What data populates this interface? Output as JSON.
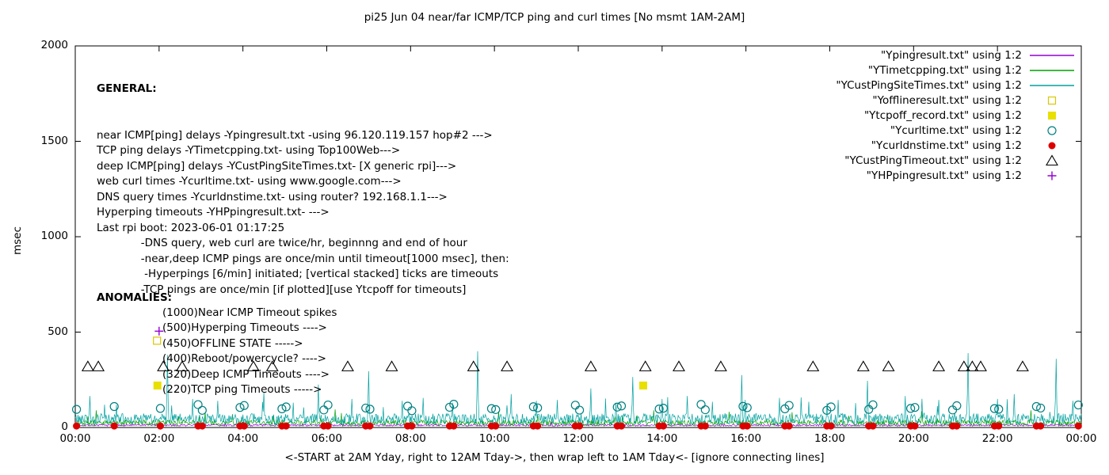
{
  "title": "pi25 Jun 04  near/far ICMP/TCP ping and curl times [No msmt 1AM-2AM]",
  "axes": {
    "ylabel": "msec",
    "xlabel": "<-START at 2AM Yday, right to 12AM Tday->, then wrap left to 1AM Tday<- [ignore connecting lines]",
    "x_ticks": [
      "00:00",
      "02:00",
      "04:00",
      "06:00",
      "08:00",
      "10:00",
      "12:00",
      "14:00",
      "16:00",
      "18:00",
      "20:00",
      "22:00",
      "00:00"
    ],
    "y_ticks": [
      "0",
      "500",
      "1000",
      "1500",
      "2000"
    ]
  },
  "legend": {
    "items": [
      {
        "label": "\"Ypingresult.txt\" using 1:2",
        "marker": "line",
        "color": "#9400d3"
      },
      {
        "label": "\"YTimetcpping.txt\" using 1:2",
        "marker": "line",
        "color": "#00a000"
      },
      {
        "label": "\"YCustPingSiteTimes.txt\" using 1:2",
        "marker": "line",
        "color": "#00a0a0"
      },
      {
        "label": "\"Yofflineresult.txt\" using 1:2",
        "marker": "square-open",
        "color": "#d8c800"
      },
      {
        "label": "\"Ytcpoff_record.txt\" using 1:2",
        "marker": "square-filled",
        "color": "#e8e000"
      },
      {
        "label": "\"Ycurltime.txt\" using 1:2",
        "marker": "circle-open",
        "color": "#008080"
      },
      {
        "label": "\"Ycurldnstime.txt\" using 1:2",
        "marker": "circle-filled",
        "color": "#dd0000"
      },
      {
        "label": "\"YCustPingTimeout.txt\" using 1:2",
        "marker": "triangle-open",
        "color": "#000000"
      },
      {
        "label": "\"YHPpingresult.txt\" using 1:2",
        "marker": "plus",
        "color": "#9400d3"
      }
    ]
  },
  "annotations": {
    "general": {
      "title": "GENERAL:",
      "lines": [
        "near ICMP[ping] delays -Ypingresult.txt -using 96.120.119.157 hop#2 --->",
        "TCP ping delays -YTimetcpping.txt- using Top100Web--->",
        "deep ICMP[ping] delays -YCustPingSiteTimes.txt- [X generic rpi]--->",
        "web curl times -Ycurltime.txt- using www.google.com--->",
        "DNS query times -Ycurldnstime.txt- using router? 192.168.1.1--->",
        "Hyperping timeouts -YHPpingresult.txt- --->",
        "Last rpi boot: 2023-06-01 01:17:25",
        "             -DNS query, web curl are twice/hr, beginnng and end of hour",
        "             -near,deep ICMP pings are once/min until timeout[1000 msec], then:",
        "              -Hyperpings [6/min] initiated; [vertical stacked] ticks are timeouts",
        "             -TCP pings are once/min [if plotted][use Ytcpoff for timeouts]"
      ]
    },
    "anomalies": {
      "title": "ANOMALIES:",
      "lines": [
        "(1000)Near ICMP Timeout spikes",
        "(500)Hyperping Timeouts ---->",
        "(450)OFFLINE STATE ----->",
        "(400)Reboot/powercycle? ---->",
        "(320)Deep ICMP Timeouts ---->",
        "(220)TCP ping Timeouts ----->"
      ]
    }
  },
  "chart_data": {
    "type": "line",
    "title": "pi25 Jun 04  near/far ICMP/TCP ping and curl times [No msmt 1AM-2AM]",
    "xlabel": "<-START at 2AM Yday, right to 12AM Tday->, then wrap left to 1AM Tday<- [ignore connecting lines]",
    "ylabel": "msec",
    "xlim": [
      0,
      24
    ],
    "ylim": [
      0,
      2000
    ],
    "x_tick_hours": [
      0,
      2,
      4,
      6,
      8,
      10,
      12,
      14,
      16,
      18,
      20,
      22,
      24
    ],
    "y_tick_values": [
      0,
      500,
      1000,
      1500,
      2000
    ],
    "grid": false,
    "legend_position": "top-right",
    "lines": [
      {
        "name": "Ypingresult.txt",
        "color": "#9400d3",
        "baseline": 12,
        "noise": 5,
        "spike_prob": 0.005,
        "spike_amp": 15,
        "seed": 7,
        "spikes": []
      },
      {
        "name": "YTimetcpping.txt",
        "color": "#00a000",
        "baseline": 25,
        "noise": 14,
        "spike_prob": 0.02,
        "spike_amp": 50,
        "seed": 13,
        "spikes": [
          [
            0.5,
            90
          ],
          [
            3.1,
            80
          ],
          [
            6.2,
            95
          ],
          [
            10.1,
            85
          ],
          [
            13.8,
            90
          ],
          [
            17.1,
            80
          ],
          [
            20.2,
            85
          ],
          [
            22.8,
            90
          ]
        ]
      },
      {
        "name": "YCustPingSiteTimes.txt",
        "color": "#00a0a0",
        "baseline": 45,
        "noise": 28,
        "spike_prob": 0.03,
        "spike_amp": 110,
        "seed": 42,
        "spikes": [
          [
            0.35,
            165
          ],
          [
            0.7,
            120
          ],
          [
            2.2,
            380
          ],
          [
            2.8,
            150
          ],
          [
            3.4,
            140
          ],
          [
            4.5,
            185
          ],
          [
            5.2,
            130
          ],
          [
            5.8,
            225
          ],
          [
            6.6,
            150
          ],
          [
            7.0,
            295
          ],
          [
            7.8,
            140
          ],
          [
            8.3,
            155
          ],
          [
            9.0,
            130
          ],
          [
            9.6,
            400
          ],
          [
            10.4,
            175
          ],
          [
            11.0,
            140
          ],
          [
            11.5,
            145
          ],
          [
            12.3,
            205
          ],
          [
            12.9,
            130
          ],
          [
            13.3,
            265
          ],
          [
            14.0,
            150
          ],
          [
            14.6,
            165
          ],
          [
            15.2,
            135
          ],
          [
            15.9,
            275
          ],
          [
            16.8,
            155
          ],
          [
            17.5,
            135
          ],
          [
            18.2,
            145
          ],
          [
            18.9,
            245
          ],
          [
            19.8,
            165
          ],
          [
            20.6,
            145
          ],
          [
            21.3,
            390
          ],
          [
            22.0,
            150
          ],
          [
            22.4,
            175
          ],
          [
            23.4,
            360
          ],
          [
            23.8,
            140
          ]
        ]
      }
    ],
    "points": [
      {
        "name": "Yofflineresult.txt",
        "marker": "square-open",
        "color": "#d8c800",
        "x": [
          1.95
        ],
        "y": [
          455
        ]
      },
      {
        "name": "Ytcpoff_record.txt",
        "marker": "square-filled",
        "color": "#e8e000",
        "x": [
          1.96,
          13.55
        ],
        "y_const": 220
      },
      {
        "name": "Ycurltime.txt",
        "marker": "circle-open",
        "color": "#008080",
        "x": [
          0.03,
          0.93,
          2.03,
          2.93,
          3.03,
          3.93,
          4.03,
          4.93,
          5.03,
          5.93,
          6.03,
          6.93,
          7.03,
          7.93,
          8.03,
          8.93,
          9.03,
          9.93,
          10.03,
          10.93,
          11.03,
          11.93,
          12.03,
          12.93,
          13.03,
          13.93,
          14.03,
          14.93,
          15.03,
          15.93,
          16.03,
          16.93,
          17.03,
          17.93,
          18.03,
          18.93,
          19.03,
          19.93,
          20.03,
          20.93,
          21.03,
          21.93,
          22.03,
          22.93,
          23.03,
          23.93
        ],
        "y": [
          95,
          110,
          100,
          120,
          90,
          105,
          115,
          98,
          108,
          92,
          118,
          102,
          96,
          112,
          88,
          106,
          122,
          99,
          94,
          109,
          103,
          117,
          91,
          107,
          113,
          97,
          101,
          121,
          93,
          111,
          104,
          98,
          116,
          90,
          108,
          95,
          119,
          100,
          105,
          92,
          114,
          99,
          96,
          110,
          102,
          118
        ]
      },
      {
        "name": "Ycurldnstime.txt",
        "marker": "circle-filled",
        "color": "#dd0000",
        "x": [
          0.03,
          0.93,
          2.03,
          2.93,
          3.03,
          3.93,
          4.03,
          4.93,
          5.03,
          5.93,
          6.03,
          6.93,
          7.03,
          7.93,
          8.03,
          8.93,
          9.03,
          9.93,
          10.03,
          10.93,
          11.03,
          11.93,
          12.03,
          12.93,
          13.03,
          13.93,
          14.03,
          14.93,
          15.03,
          15.93,
          16.03,
          16.93,
          17.03,
          17.93,
          18.03,
          18.93,
          19.03,
          19.93,
          20.03,
          20.93,
          21.03,
          21.93,
          22.03,
          22.93,
          23.03,
          23.93
        ],
        "y_const": 8
      },
      {
        "name": "YCustPingTimeout.txt",
        "marker": "triangle-open",
        "color": "#000000",
        "x": [
          0.3,
          0.55,
          2.1,
          2.55,
          4.25,
          4.7,
          6.5,
          7.55,
          9.5,
          10.3,
          12.3,
          13.6,
          14.4,
          15.4,
          17.6,
          18.8,
          19.4,
          20.6,
          21.2,
          21.4,
          21.6,
          22.6
        ],
        "y_const": 320
      },
      {
        "name": "YHPpingresult.txt",
        "marker": "plus",
        "color": "#9400d3",
        "x": [
          2.0
        ],
        "y": [
          505
        ]
      }
    ]
  }
}
